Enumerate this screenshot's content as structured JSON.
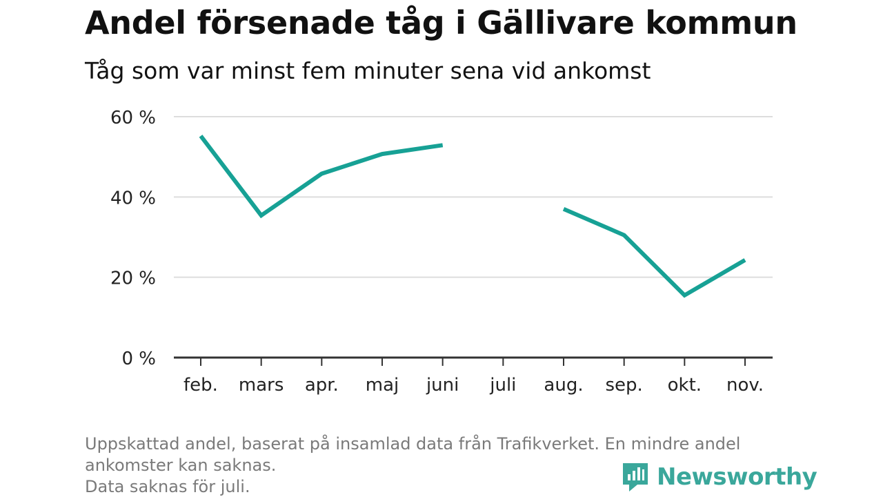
{
  "header": {
    "title": "Andel försenade tåg i Gällivare kommun",
    "subtitle": "Tåg som var minst fem minuter sena vid ankomst"
  },
  "footnote": {
    "line1": "Uppskattad andel, baserat på insamlad data från Trafikverket. En mindre andel",
    "line2": "ankomster kan saknas.",
    "line3": "Data saknas för juli."
  },
  "brand": {
    "name": "Newsworthy",
    "icon": "newsworthy-logo-icon",
    "color": "#3aa79b"
  },
  "colors": {
    "line": "#17a195",
    "grid": "#dddddd",
    "axis": "#333333"
  },
  "chart_data": {
    "type": "line",
    "categories": [
      "feb.",
      "mars",
      "apr.",
      "maj",
      "juni",
      "juli",
      "aug.",
      "sep.",
      "okt.",
      "nov."
    ],
    "series": [
      {
        "values": [
          55.2,
          35.4,
          45.8,
          50.7,
          52.9,
          null,
          37.0,
          30.5,
          15.5,
          24.3
        ]
      }
    ],
    "ylim": [
      0,
      60
    ],
    "yticks": [
      0,
      20,
      40,
      60
    ],
    "ytick_labels": [
      "0 %",
      "20 %",
      "40 %",
      "60 %"
    ],
    "grid": true,
    "xlabel": "",
    "ylabel": ""
  }
}
